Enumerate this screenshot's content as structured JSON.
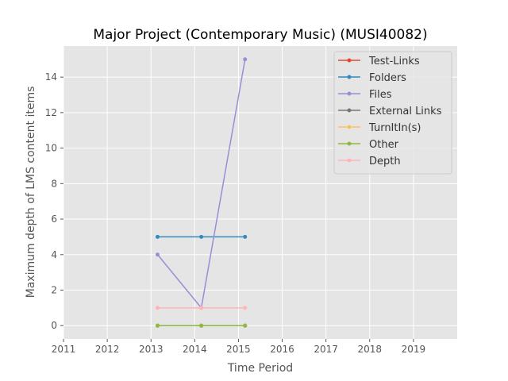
{
  "chart_data": {
    "type": "line",
    "title": "Major Project (Contemporary Music) (MUSI40082)",
    "xlabel": "Time Period",
    "ylabel": "Maximum depth of LMS content items",
    "xlim": [
      2011,
      2020
    ],
    "ylim": [
      -0.75,
      15.75
    ],
    "xticks": [
      2011,
      2012,
      2013,
      2014,
      2015,
      2016,
      2017,
      2018,
      2019
    ],
    "yticks": [
      0,
      2,
      4,
      6,
      8,
      10,
      12,
      14
    ],
    "grid": true,
    "legend_position": "top-right",
    "x": [
      2013.15,
      2014.15,
      2015.15
    ],
    "series": [
      {
        "name": "Test-Links",
        "color": "#E24A33",
        "values": [
          0,
          0,
          0
        ]
      },
      {
        "name": "Folders",
        "color": "#348ABD",
        "values": [
          5,
          5,
          5
        ]
      },
      {
        "name": "Files",
        "color": "#988ED5",
        "values": [
          4,
          1,
          15
        ]
      },
      {
        "name": "External Links",
        "color": "#777777",
        "values": [
          0,
          0,
          0
        ]
      },
      {
        "name": "TurnItIn(s)",
        "color": "#FBC15E",
        "values": [
          0,
          0,
          0
        ]
      },
      {
        "name": "Other",
        "color": "#8EBA42",
        "values": [
          0,
          0,
          0
        ]
      },
      {
        "name": "Depth",
        "color": "#FFB5B8",
        "values": [
          1,
          1,
          1
        ]
      }
    ]
  }
}
